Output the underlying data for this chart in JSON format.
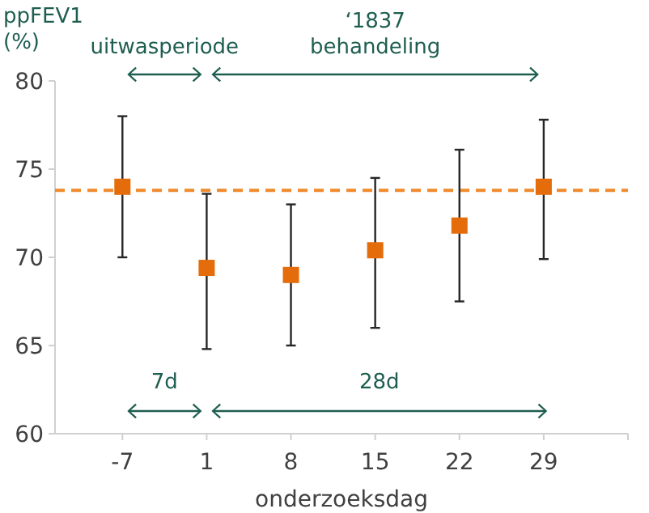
{
  "chart_data": {
    "type": "scatter",
    "xlabel": "onderzoeksdag",
    "ylabel": "ppFEV1 (%)",
    "categories": [
      "-7",
      "1",
      "8",
      "15",
      "22",
      "29"
    ],
    "series": [
      {
        "color": "#e46c0a",
        "values": [
          74,
          69.4,
          69,
          70.4,
          71.8,
          74
        ],
        "errors": [
          [
            70,
            78
          ],
          [
            64.8,
            73.6
          ],
          [
            65,
            73
          ],
          [
            66,
            74.5
          ],
          [
            67.5,
            76.1
          ],
          [
            69.9,
            77.8
          ]
        ]
      }
    ],
    "marker": "square",
    "ylim": [
      60,
      80
    ],
    "yticks": [
      60,
      65,
      70,
      75,
      80
    ],
    "grid": false,
    "ref_lines": [
      {
        "axis": "y",
        "value": 73.8,
        "color": "#f08a2c",
        "line_style": "dashed"
      }
    ],
    "annotations": [
      "uitwasperiode",
      "‘1837 behandeling",
      "7d",
      "28d"
    ]
  }
}
